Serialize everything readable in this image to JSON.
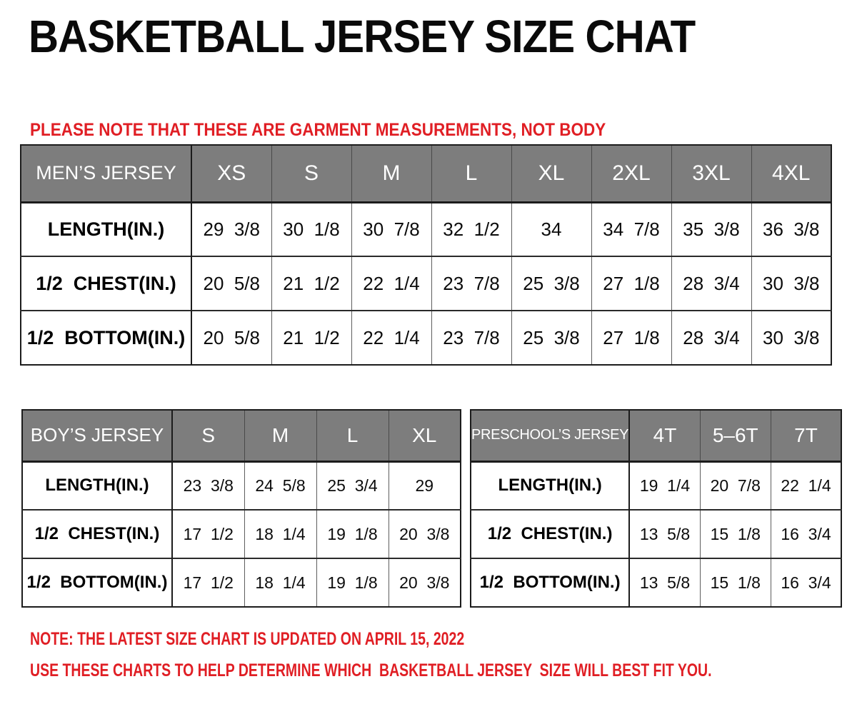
{
  "header": {
    "title": "BASKETBALL JERSEY SIZE CHAT",
    "note_lines": [
      "PLEASE NOTE THAT THESE ARE GARMENT MEASUREMENTS, NOT BODY",
      "MEASUREMENTS"
    ]
  },
  "tables": {
    "men": {
      "title": "MEN’S JERSEY",
      "sizes": [
        "XS",
        "S",
        "M",
        "L",
        "XL",
        "2XL",
        "3XL",
        "4XL"
      ],
      "rows": [
        {
          "label": "LENGTH(IN.)",
          "values": [
            "29  3/8",
            "30  1/8",
            "30  7/8",
            "32  1/2",
            "34",
            "34  7/8",
            "35  3/8",
            "36  3/8"
          ]
        },
        {
          "label": "1/2  CHEST(IN.)",
          "values": [
            "20  5/8",
            "21  1/2",
            "22  1/4",
            "23  7/8",
            "25  3/8",
            "27  1/8",
            "28  3/4",
            "30  3/8"
          ]
        },
        {
          "label": "1/2  BOTTOM(IN.)",
          "values": [
            "20  5/8",
            "21  1/2",
            "22  1/4",
            "23  7/8",
            "25  3/8",
            "27  1/8",
            "28  3/4",
            "30  3/8"
          ]
        }
      ]
    },
    "boy": {
      "title": "BOY’S JERSEY",
      "sizes": [
        "S",
        "M",
        "L",
        "XL"
      ],
      "rows": [
        {
          "label": "LENGTH(IN.)",
          "values": [
            "23  3/8",
            "24  5/8",
            "25  3/4",
            "29"
          ]
        },
        {
          "label": "1/2  CHEST(IN.)",
          "values": [
            "17  1/2",
            "18  1/4",
            "19  1/8",
            "20  3/8"
          ]
        },
        {
          "label": "1/2  BOTTOM(IN.)",
          "values": [
            "17  1/2",
            "18  1/4",
            "19  1/8",
            "20  3/8"
          ]
        }
      ]
    },
    "preschool": {
      "title": "PRESCHOOL’S JERSEY",
      "sizes": [
        "4T",
        "5–6T",
        "7T"
      ],
      "rows": [
        {
          "label": "LENGTH(IN.)",
          "values": [
            "19  1/4",
            "20  7/8",
            "22  1/4"
          ]
        },
        {
          "label": "1/2  CHEST(IN.)",
          "values": [
            "13  5/8",
            "15  1/8",
            "16  3/4"
          ]
        },
        {
          "label": "1/2  BOTTOM(IN.)",
          "values": [
            "13  5/8",
            "15  1/8",
            "16  3/4"
          ]
        }
      ]
    }
  },
  "footer": {
    "note1": "NOTE: THE LATEST SIZE CHART IS UPDATED ON APRIL 15, 2022",
    "note2": "USE THESE CHARTS TO HELP DETERMINE WHICH  BASKETBALL JERSEY  SIZE WILL BEST FIT YOU."
  },
  "colors": {
    "header_gray": "#7d7d7d",
    "note_red": "#e01e24",
    "border_dark": "#1c1c1c",
    "border_light": "#5e5e5e"
  }
}
